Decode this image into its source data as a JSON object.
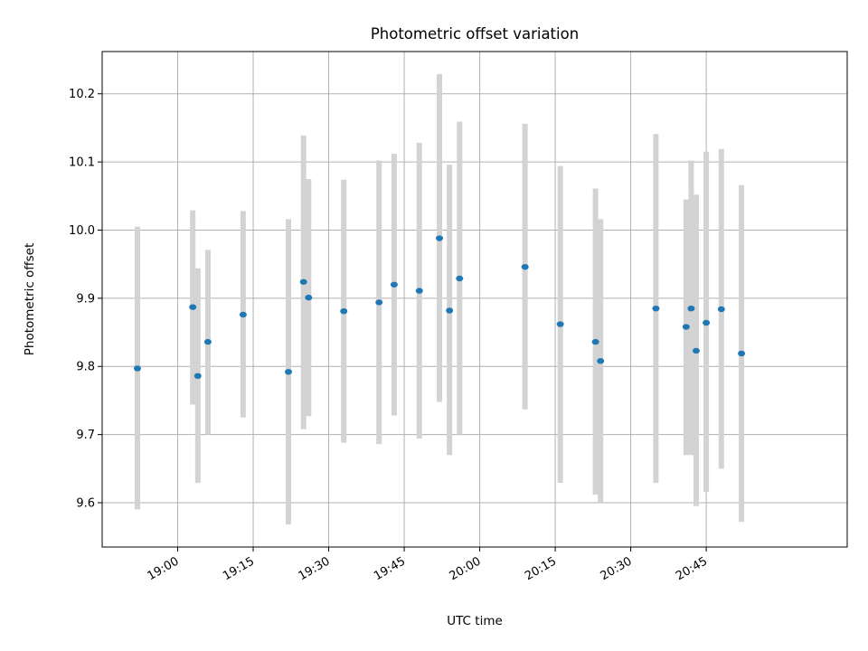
{
  "chart_data": {
    "type": "scatter",
    "title": "Photometric offset variation",
    "xlabel": "UTC time",
    "ylabel": "Photometric offset",
    "xlim": [
      "18:45",
      "21:13"
    ],
    "ylim": [
      9.535,
      10.262
    ],
    "grid": true,
    "legend": "none",
    "colors": {
      "point": "#1f77b4",
      "errorbar": "#d3d3d3",
      "grid": "#b0b0b0"
    },
    "x_ticks": [
      "19:00",
      "19:15",
      "19:30",
      "19:45",
      "20:00",
      "20:15",
      "20:30",
      "20:45"
    ],
    "y_ticks": [
      "9.6",
      "9.7",
      "9.8",
      "9.9",
      "10.0",
      "10.1",
      "10.2"
    ],
    "points": [
      {
        "x": "18:52",
        "y": 9.797,
        "y_low": 9.59,
        "y_high": 10.005
      },
      {
        "x": "19:03",
        "y": 9.887,
        "y_low": 9.744,
        "y_high": 10.029
      },
      {
        "x": "19:04",
        "y": 9.786,
        "y_low": 9.629,
        "y_high": 9.944
      },
      {
        "x": "19:06",
        "y": 9.836,
        "y_low": 9.7,
        "y_high": 9.971
      },
      {
        "x": "19:13",
        "y": 9.876,
        "y_low": 9.725,
        "y_high": 10.028
      },
      {
        "x": "19:22",
        "y": 9.792,
        "y_low": 9.568,
        "y_high": 10.016
      },
      {
        "x": "19:25",
        "y": 9.924,
        "y_low": 9.708,
        "y_high": 10.139
      },
      {
        "x": "19:26",
        "y": 9.901,
        "y_low": 9.727,
        "y_high": 10.075
      },
      {
        "x": "19:33",
        "y": 9.881,
        "y_low": 9.688,
        "y_high": 10.074
      },
      {
        "x": "19:40",
        "y": 9.894,
        "y_low": 9.686,
        "y_high": 10.102
      },
      {
        "x": "19:43",
        "y": 9.92,
        "y_low": 9.728,
        "y_high": 10.112
      },
      {
        "x": "19:48",
        "y": 9.911,
        "y_low": 9.694,
        "y_high": 10.128
      },
      {
        "x": "19:52",
        "y": 9.988,
        "y_low": 9.748,
        "y_high": 10.229
      },
      {
        "x": "19:54",
        "y": 9.882,
        "y_low": 9.67,
        "y_high": 10.096
      },
      {
        "x": "19:56",
        "y": 9.929,
        "y_low": 9.7,
        "y_high": 10.159
      },
      {
        "x": "20:09",
        "y": 9.946,
        "y_low": 9.737,
        "y_high": 10.156
      },
      {
        "x": "20:16",
        "y": 9.862,
        "y_low": 9.629,
        "y_high": 10.094
      },
      {
        "x": "20:23",
        "y": 9.836,
        "y_low": 9.612,
        "y_high": 10.061
      },
      {
        "x": "20:24",
        "y": 9.808,
        "y_low": 9.601,
        "y_high": 10.016
      },
      {
        "x": "20:35",
        "y": 9.885,
        "y_low": 9.629,
        "y_high": 10.141
      },
      {
        "x": "20:41",
        "y": 9.858,
        "y_low": 9.67,
        "y_high": 10.045
      },
      {
        "x": "20:42",
        "y": 9.885,
        "y_low": 9.67,
        "y_high": 10.102
      },
      {
        "x": "20:43",
        "y": 9.823,
        "y_low": 9.595,
        "y_high": 10.052
      },
      {
        "x": "20:45",
        "y": 9.864,
        "y_low": 9.616,
        "y_high": 10.115
      },
      {
        "x": "20:48",
        "y": 9.884,
        "y_low": 9.65,
        "y_high": 10.119
      },
      {
        "x": "20:52",
        "y": 9.819,
        "y_low": 9.572,
        "y_high": 10.066
      }
    ]
  }
}
